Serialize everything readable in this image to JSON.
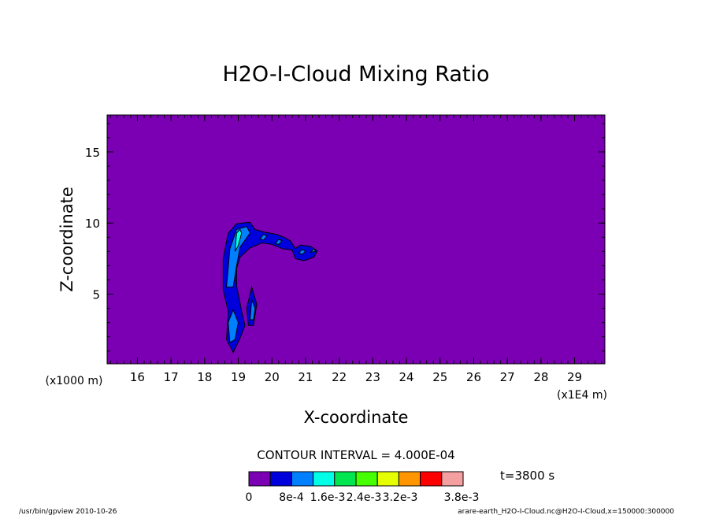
{
  "chart_data": {
    "type": "heatmap",
    "title": "H2O-I-Cloud Mixing Ratio",
    "xlabel": "X-coordinate",
    "ylabel": "Z-coordinate",
    "x_unit_label": "(x1000 m)",
    "x_unit_label_right": "(x1E4 m)",
    "xlim": [
      15.1,
      29.9
    ],
    "ylim": [
      0.1,
      17.6
    ],
    "x_ticks": [
      16,
      17,
      18,
      19,
      20,
      21,
      22,
      23,
      24,
      25,
      26,
      27,
      28,
      29
    ],
    "y_ticks": [
      5,
      10,
      15
    ],
    "background_level": 0,
    "contour_interval": "CONTOUR INTERVAL =  4.000E-04",
    "time_label": "t=3800 s",
    "colorbar": {
      "colors": [
        "#7b00b4",
        "#0000dc",
        "#0080ff",
        "#00ffe6",
        "#00e650",
        "#46ff00",
        "#e6ff00",
        "#ff9600",
        "#ff0000",
        "#f5a0a0"
      ],
      "labels": [
        "0",
        "8e-4",
        "1.6e-3",
        "2.4e-3",
        "3.2e-3",
        "3.8e-3"
      ]
    },
    "regions": [
      {
        "level": 1,
        "color": "#0000dc",
        "points": [
          [
            18.55,
            5.3
          ],
          [
            18.55,
            7.5
          ],
          [
            18.7,
            9.3
          ],
          [
            18.95,
            9.95
          ],
          [
            19.35,
            10.05
          ],
          [
            19.5,
            9.55
          ],
          [
            19.8,
            9.35
          ],
          [
            20.15,
            9.2
          ],
          [
            20.4,
            8.95
          ],
          [
            20.55,
            8.75
          ],
          [
            20.7,
            8.2
          ],
          [
            20.85,
            8.45
          ],
          [
            21.15,
            8.35
          ],
          [
            21.35,
            8.05
          ],
          [
            21.25,
            7.6
          ],
          [
            20.95,
            7.35
          ],
          [
            20.7,
            7.5
          ],
          [
            20.6,
            8.1
          ],
          [
            20.3,
            8.2
          ],
          [
            20.0,
            8.5
          ],
          [
            19.7,
            8.6
          ],
          [
            19.35,
            8.25
          ],
          [
            19.05,
            7.6
          ],
          [
            18.95,
            6.8
          ],
          [
            18.95,
            5.6
          ],
          [
            19.1,
            3.8
          ],
          [
            19.2,
            2.8
          ],
          [
            19.05,
            1.9
          ],
          [
            18.85,
            0.9
          ],
          [
            18.65,
            1.8
          ],
          [
            18.7,
            3.8
          ]
        ]
      },
      {
        "level": 1,
        "color": "#0000dc",
        "points": [
          [
            19.3,
            2.8
          ],
          [
            19.25,
            4.0
          ],
          [
            19.4,
            5.5
          ],
          [
            19.55,
            4.3
          ],
          [
            19.45,
            2.8
          ]
        ]
      },
      {
        "level": 2,
        "color": "#0080ff",
        "points": [
          [
            18.65,
            5.5
          ],
          [
            18.75,
            8.2
          ],
          [
            18.95,
            9.55
          ],
          [
            19.25,
            9.75
          ],
          [
            19.35,
            9.3
          ],
          [
            19.05,
            8.3
          ],
          [
            18.95,
            7.0
          ],
          [
            18.85,
            5.5
          ]
        ]
      },
      {
        "level": 2,
        "color": "#0080ff",
        "points": [
          [
            18.75,
            1.6
          ],
          [
            18.7,
            3.0
          ],
          [
            18.85,
            3.9
          ],
          [
            19.0,
            3.0
          ],
          [
            18.9,
            1.8
          ]
        ]
      },
      {
        "level": 2,
        "color": "#0080ff",
        "points": [
          [
            19.35,
            3.2
          ],
          [
            19.4,
            4.6
          ],
          [
            19.5,
            4.0
          ],
          [
            19.45,
            3.2
          ]
        ]
      },
      {
        "level": 2,
        "color": "#0080ff",
        "points": [
          [
            19.65,
            8.9
          ],
          [
            19.75,
            9.2
          ],
          [
            19.85,
            9.1
          ],
          [
            19.75,
            8.8
          ]
        ]
      },
      {
        "level": 2,
        "color": "#0080ff",
        "points": [
          [
            20.1,
            8.55
          ],
          [
            20.2,
            8.85
          ],
          [
            20.3,
            8.75
          ],
          [
            20.2,
            8.5
          ]
        ]
      },
      {
        "level": 2,
        "color": "#0080ff",
        "points": [
          [
            20.8,
            7.9
          ],
          [
            20.9,
            8.15
          ],
          [
            21.0,
            8.0
          ],
          [
            20.9,
            7.8
          ]
        ]
      },
      {
        "level": 2,
        "color": "#0080ff",
        "points": [
          [
            21.15,
            7.95
          ],
          [
            21.25,
            8.2
          ],
          [
            21.3,
            8.0
          ]
        ]
      },
      {
        "level": 3,
        "color": "#00ffe6",
        "points": [
          [
            18.9,
            8.0
          ],
          [
            18.95,
            9.3
          ],
          [
            19.05,
            9.55
          ],
          [
            19.1,
            9.3
          ],
          [
            19.0,
            8.4
          ]
        ]
      }
    ]
  },
  "footer": {
    "left": "/usr/bin/gpview  2010-10-26",
    "right": "arare-earth_H2O-I-Cloud.nc@H2O-I-Cloud,x=150000:300000"
  }
}
